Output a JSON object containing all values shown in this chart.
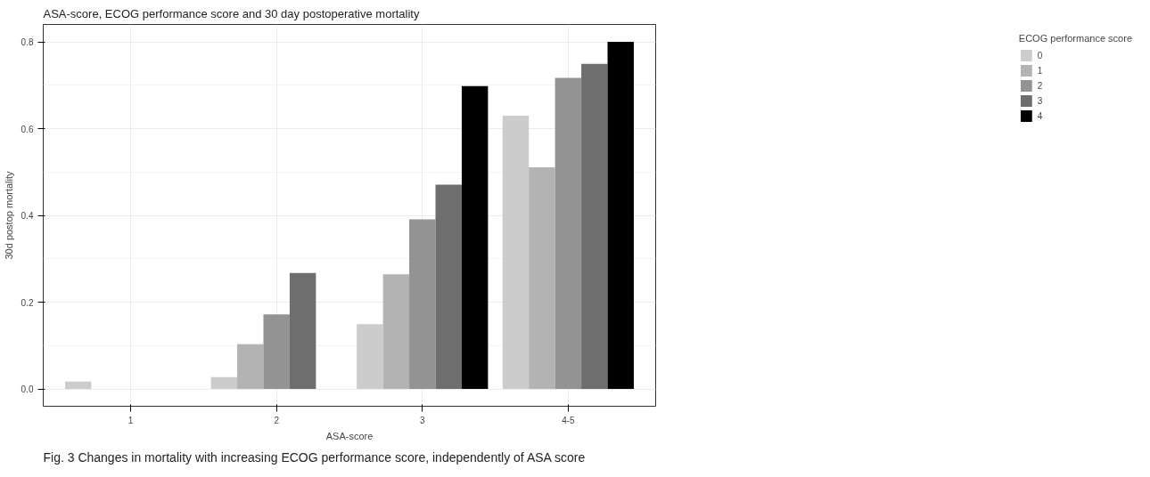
{
  "chart_data": {
    "type": "bar",
    "title": "ASA-score, ECOG performance score and 30 day postoperative mortality",
    "xlabel": "ASA-score",
    "ylabel": "30d postop mortality",
    "legend_title": "ECOG performance score",
    "categories": [
      "1",
      "2",
      "3",
      "4-5"
    ],
    "series": [
      {
        "name": "0",
        "color": "#cccccc",
        "values": [
          0.017,
          0.027,
          0.149,
          0.63
        ]
      },
      {
        "name": "1",
        "color": "#b3b3b3",
        "values": [
          null,
          0.103,
          0.264,
          0.511
        ]
      },
      {
        "name": "2",
        "color": "#939393",
        "values": [
          null,
          0.172,
          0.391,
          0.717
        ]
      },
      {
        "name": "3",
        "color": "#6e6e6e",
        "values": [
          null,
          0.267,
          0.471,
          0.749
        ]
      },
      {
        "name": "4",
        "color": "#000000",
        "values": [
          null,
          null,
          0.698,
          0.8
        ]
      }
    ],
    "ylim": [
      -0.04,
      0.84
    ],
    "yticks": [
      {
        "value": 0,
        "label": "0.0"
      },
      0.2,
      0.4,
      0.6,
      0.8
    ],
    "grid": true,
    "legend": "right",
    "annotations": [
      "Fig. 3 Changes in mortality with increasing ECOG performance score, independently of ASA score"
    ]
  }
}
